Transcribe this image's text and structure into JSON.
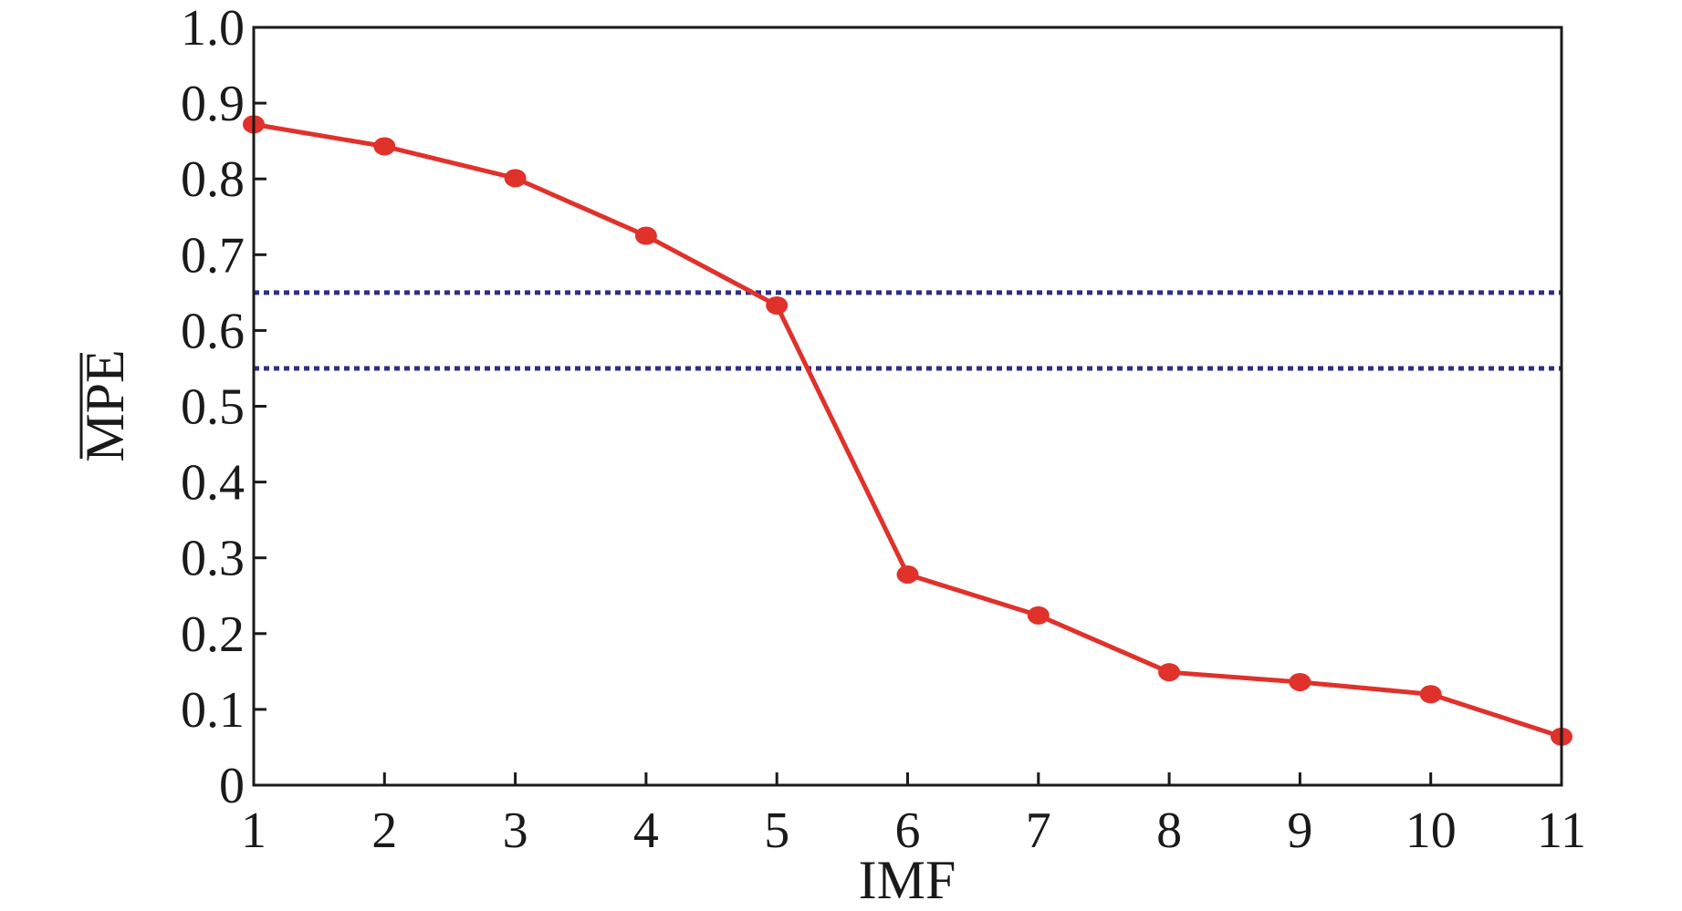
{
  "chart_data": {
    "type": "line",
    "title": "",
    "xlabel": "IMF",
    "ylabel": "MPE",
    "ylabel_overline": true,
    "x": [
      1,
      2,
      3,
      4,
      5,
      6,
      7,
      8,
      9,
      10,
      11
    ],
    "xlim": [
      1,
      11
    ],
    "ylim": [
      0,
      1.0
    ],
    "x_ticks": [
      "1",
      "2",
      "3",
      "4",
      "5",
      "6",
      "7",
      "8",
      "9",
      "10",
      "11"
    ],
    "y_ticks": [
      "0",
      "0.1",
      "0.2",
      "0.3",
      "0.4",
      "0.5",
      "0.6",
      "0.7",
      "0.8",
      "0.9",
      "1.0"
    ],
    "series": [
      {
        "values": [
          0.872,
          0.843,
          0.801,
          0.725,
          0.633,
          0.278,
          0.224,
          0.149,
          0.136,
          0.12,
          0.064
        ],
        "color": "#e0312b",
        "marker": "circle"
      }
    ],
    "reference_lines": [
      {
        "y": 0.65,
        "style": "dotted",
        "color": "#2e2e88"
      },
      {
        "y": 0.55,
        "style": "dotted",
        "color": "#2e2e88"
      }
    ],
    "grid": false,
    "legend": "none"
  }
}
